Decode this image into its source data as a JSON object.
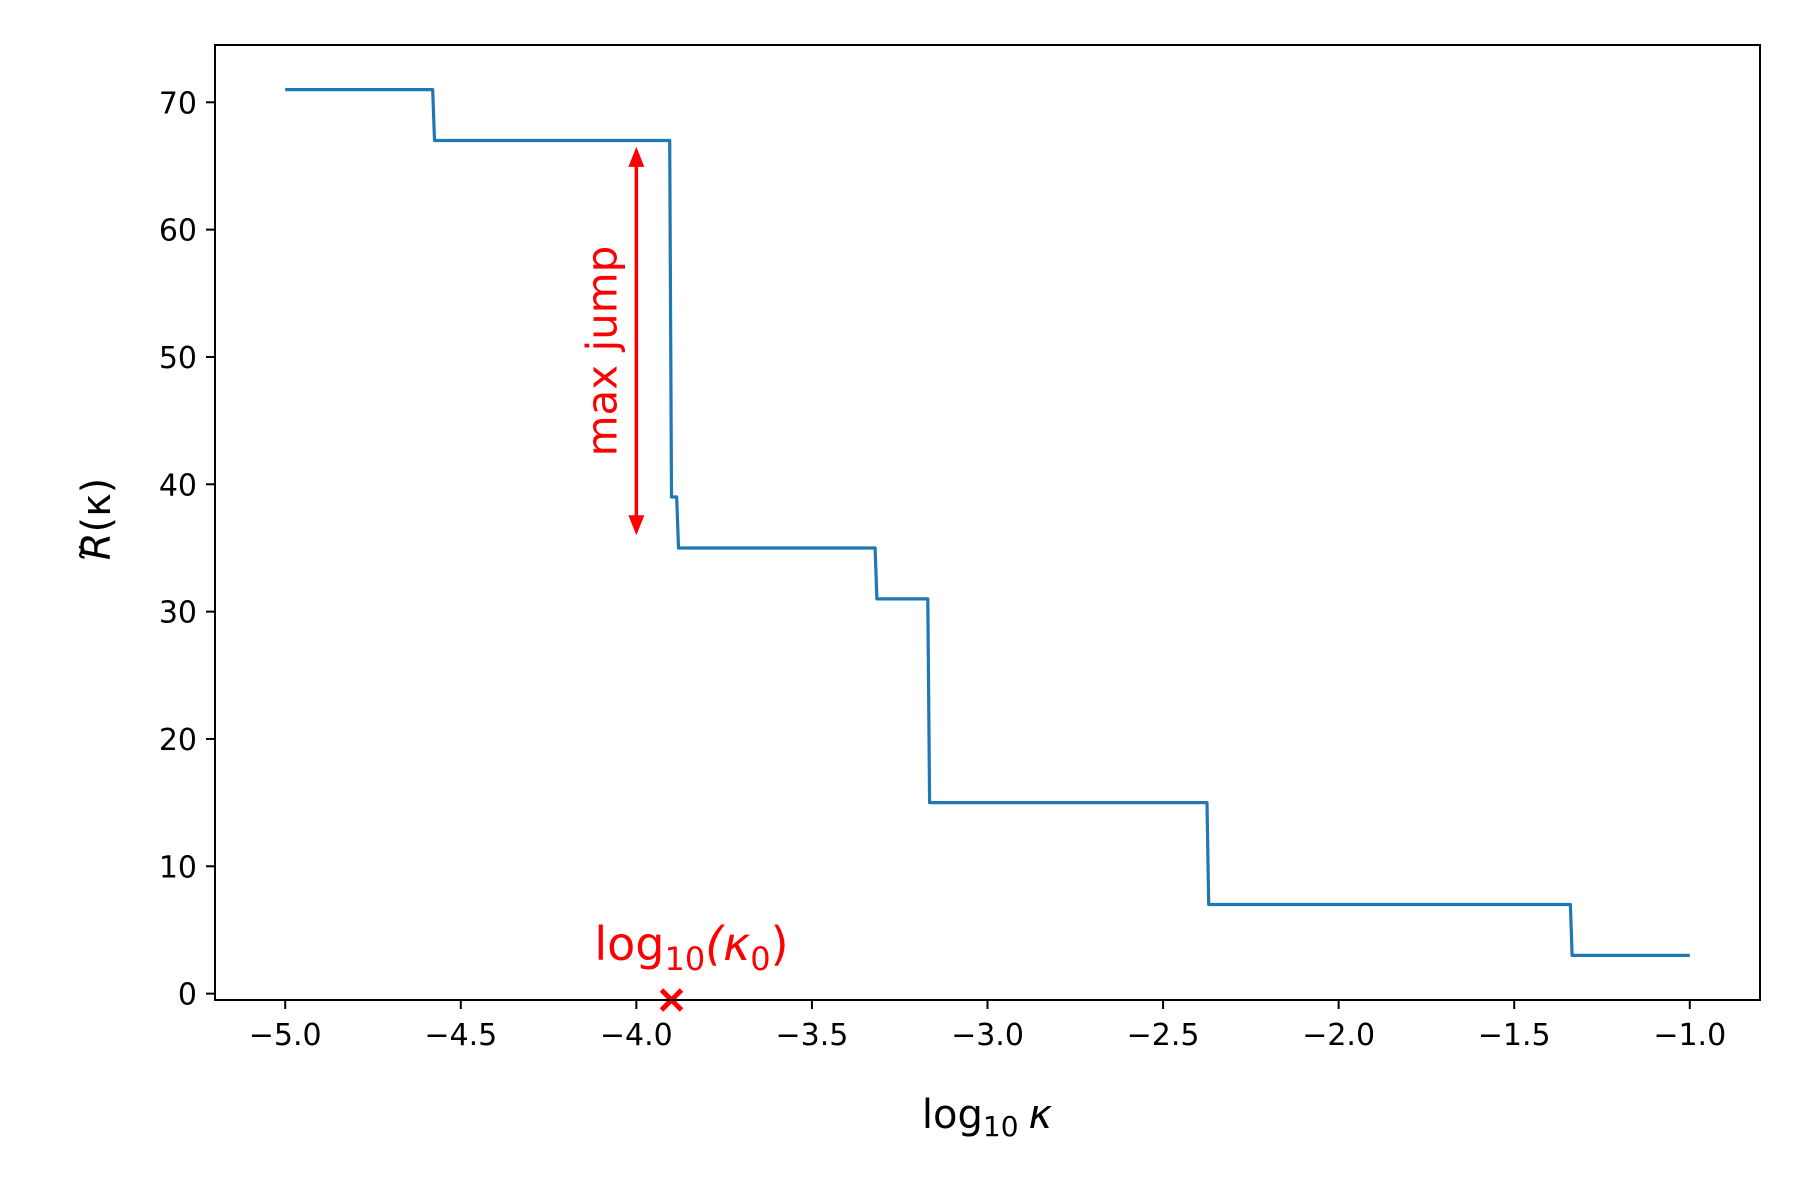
{
  "chart_data": {
    "type": "line",
    "xlabel": {
      "base": "log",
      "sub": "10",
      "symbol": "κ"
    },
    "ylabel": {
      "symbol": "R",
      "tilde": "˜",
      "arg": "(κ)"
    },
    "xlim": [
      -5.2,
      -0.8
    ],
    "ylim": [
      -0.5,
      74.5
    ],
    "xticks": [
      -5.0,
      -4.5,
      -4.0,
      -3.5,
      -3.0,
      -2.5,
      -2.0,
      -1.5,
      -1.0
    ],
    "xtick_labels": [
      "−5.0",
      "−4.5",
      "−4.0",
      "−3.5",
      "−3.0",
      "−2.5",
      "−2.0",
      "−1.5",
      "−1.0"
    ],
    "yticks": [
      0,
      10,
      20,
      30,
      40,
      50,
      60,
      70
    ],
    "ytick_labels": [
      "0",
      "10",
      "20",
      "30",
      "40",
      "50",
      "60",
      "70"
    ],
    "grid": false,
    "series": [
      {
        "color": "#1f77b4",
        "x": [
          -5.0,
          -4.58,
          -4.575,
          -3.905,
          -3.9,
          -3.885,
          -3.88,
          -3.32,
          -3.315,
          -3.17,
          -3.165,
          -2.375,
          -2.37,
          -1.34,
          -1.335,
          -1.0
        ],
        "y": [
          71,
          71,
          67,
          67,
          39,
          39,
          35,
          35,
          31,
          31,
          15,
          15,
          7,
          7,
          3,
          3
        ]
      }
    ],
    "annotations": {
      "max_jump": {
        "text": "max jump",
        "x": -4.0,
        "y_from": 36,
        "y_to": 66.5,
        "color": "#ff0000"
      },
      "kappa0": {
        "label_base": "log",
        "label_sub": "10",
        "label_paren_open": "(κ",
        "label_sub2": "0",
        "label_paren_close": ")",
        "x": -3.9,
        "y": -0.5,
        "marker": "x",
        "color": "#ff0000"
      }
    }
  }
}
